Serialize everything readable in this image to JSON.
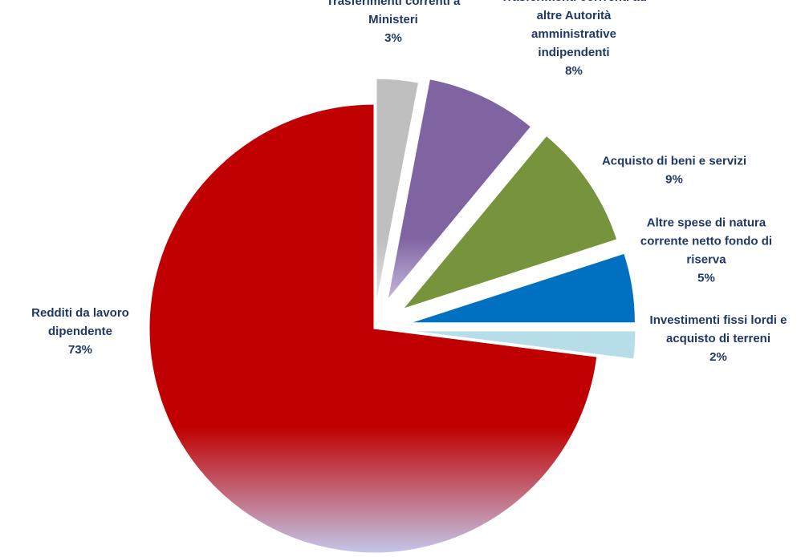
{
  "chart_data": {
    "type": "pie",
    "title": "",
    "start_angle_deg": 90,
    "direction": "clockwise",
    "exploded": true,
    "legend": "none",
    "label_color": "#1f3864",
    "slices": [
      {
        "label": "Trasferimenti correnti a Ministeri",
        "label_lines": [
          "Trasferimenti correnti a",
          "Ministeri"
        ],
        "value": 0.03,
        "percent_label": "3%",
        "color": "#bfbfbf",
        "color_bottom": "#e6e6e6"
      },
      {
        "label": "Trasferimenti corrrenti ad altre Autorità amministrative indipendenti",
        "label_lines": [
          "Trasferimenti corrrenti ad",
          "altre Autorità",
          "amministrative",
          "indipendenti"
        ],
        "value": 0.08,
        "percent_label": "8%",
        "color": "#8064a2",
        "color_bottom": "#c4b8dc"
      },
      {
        "label": "Acquisto di beni e servizi",
        "label_lines": [
          "Acquisto di beni e servizi"
        ],
        "value": 0.09,
        "percent_label": "9%",
        "color": "#77933c",
        "color_bottom": "#77933c"
      },
      {
        "label": "Altre spese di natura corrente netto fondo di riserva",
        "label_lines": [
          "Altre spese di natura",
          "corrente netto fondo di",
          "riserva"
        ],
        "value": 0.05,
        "percent_label": "5%",
        "color": "#0070c0",
        "color_bottom": "#0070c0"
      },
      {
        "label": "Investimenti fissi lordi e acquisto di terreni",
        "label_lines": [
          "Investimenti fissi lordi e",
          "acquisto di terreni"
        ],
        "value": 0.02,
        "percent_label": "2%",
        "color": "#b7dde8",
        "color_bottom": "#b7dde8"
      },
      {
        "label": "Redditi da lavoro dipendente",
        "label_lines": [
          "Redditi da lavoro",
          "dipendente"
        ],
        "value": 0.73,
        "percent_label": "73%",
        "color": "#c00000",
        "color_bottom": "#c3c7ea"
      }
    ]
  }
}
